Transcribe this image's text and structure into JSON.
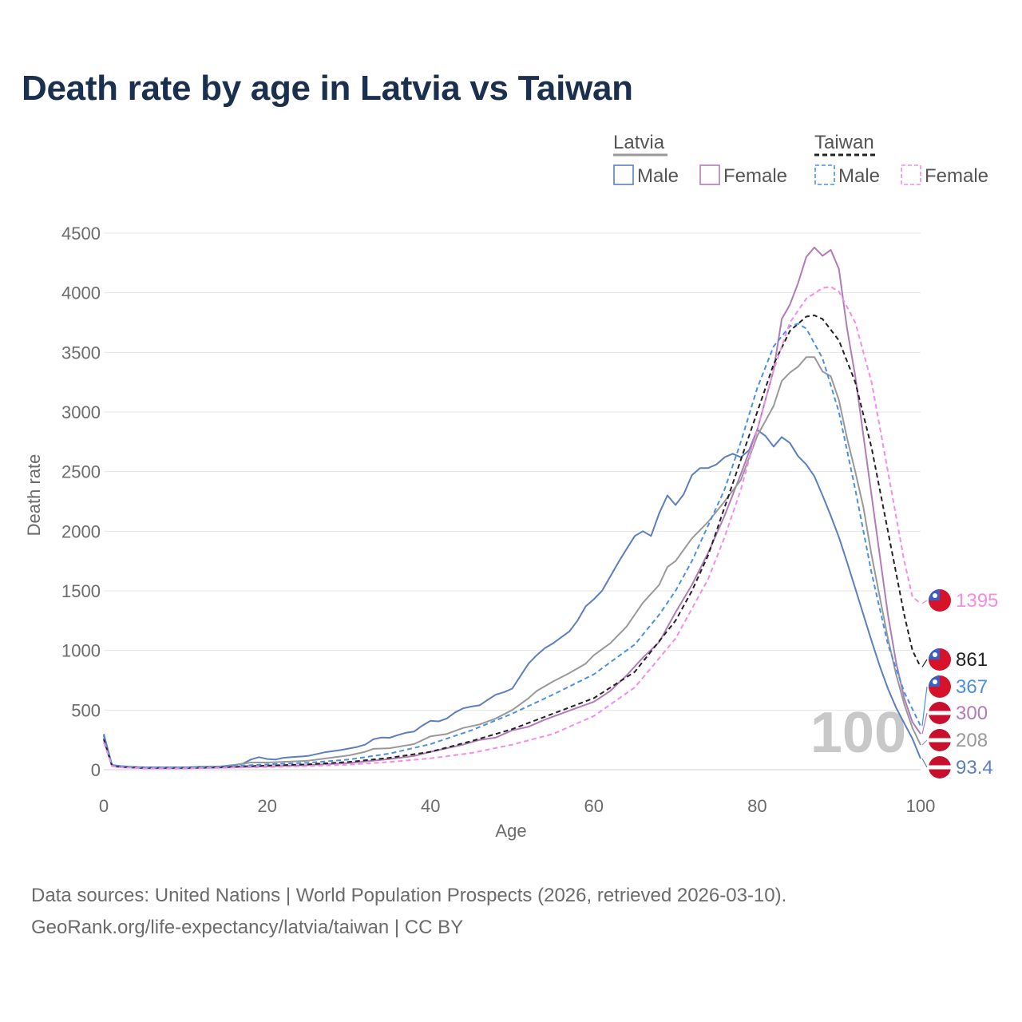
{
  "title": "Death rate by age in Latvia vs Taiwan",
  "footer": {
    "sources": "Data sources: United Nations | World Population Prospects (2026, retrieved 2026-03-10).",
    "credit": "GeoRank.org/life-expectancy/latvia/taiwan | CC BY"
  },
  "legend": {
    "groups": [
      {
        "name": "Latvia",
        "color": "#999999",
        "dash": false
      },
      {
        "name": "Taiwan",
        "color": "#222222",
        "dash": true
      }
    ],
    "items": [
      {
        "label": "Male",
        "color": "#5b7fbf",
        "dash": false
      },
      {
        "label": "Female",
        "color": "#b07cb8",
        "dash": false
      },
      {
        "label": "Male",
        "color": "#4a90e2",
        "dash": true
      },
      {
        "label": "Female",
        "color": "#f48ce8",
        "dash": true
      }
    ]
  },
  "chart_data": {
    "type": "line",
    "title": "Death rate by age in Latvia vs Taiwan",
    "xlabel": "Age",
    "ylabel": "Death rate",
    "xlim": [
      0,
      100
    ],
    "ylim": [
      0,
      4500
    ],
    "xticks": [
      0,
      20,
      40,
      60,
      80,
      100
    ],
    "yticks": [
      0,
      500,
      1000,
      1500,
      2000,
      2500,
      3000,
      3500,
      4000,
      4500
    ],
    "grid": true,
    "watermark": "100",
    "series": [
      {
        "name": "Latvia Male",
        "color": "#5b7fbf",
        "dash": false,
        "end_label": "93.4",
        "flag": "latvia",
        "points": [
          [
            0,
            300
          ],
          [
            1,
            40
          ],
          [
            2,
            30
          ],
          [
            3,
            25
          ],
          [
            5,
            20
          ],
          [
            10,
            20
          ],
          [
            12,
            25
          ],
          [
            14,
            25
          ],
          [
            16,
            40
          ],
          [
            17,
            50
          ],
          [
            18,
            85
          ],
          [
            19,
            105
          ],
          [
            20,
            90
          ],
          [
            21,
            85
          ],
          [
            22,
            100
          ],
          [
            23,
            105
          ],
          [
            25,
            115
          ],
          [
            27,
            145
          ],
          [
            29,
            165
          ],
          [
            31,
            190
          ],
          [
            32,
            210
          ],
          [
            33,
            255
          ],
          [
            34,
            270
          ],
          [
            35,
            268
          ],
          [
            36,
            290
          ],
          [
            37,
            310
          ],
          [
            38,
            320
          ],
          [
            39,
            370
          ],
          [
            40,
            410
          ],
          [
            41,
            405
          ],
          [
            42,
            430
          ],
          [
            43,
            480
          ],
          [
            44,
            515
          ],
          [
            45,
            530
          ],
          [
            46,
            540
          ],
          [
            47,
            585
          ],
          [
            48,
            630
          ],
          [
            49,
            650
          ],
          [
            50,
            680
          ],
          [
            51,
            785
          ],
          [
            52,
            890
          ],
          [
            53,
            960
          ],
          [
            54,
            1020
          ],
          [
            55,
            1060
          ],
          [
            56,
            1110
          ],
          [
            57,
            1160
          ],
          [
            58,
            1250
          ],
          [
            59,
            1370
          ],
          [
            60,
            1430
          ],
          [
            61,
            1500
          ],
          [
            62,
            1620
          ],
          [
            63,
            1740
          ],
          [
            64,
            1850
          ],
          [
            65,
            1960
          ],
          [
            66,
            2000
          ],
          [
            67,
            1960
          ],
          [
            68,
            2150
          ],
          [
            69,
            2300
          ],
          [
            70,
            2220
          ],
          [
            71,
            2310
          ],
          [
            72,
            2470
          ],
          [
            73,
            2530
          ],
          [
            74,
            2530
          ],
          [
            75,
            2560
          ],
          [
            76,
            2620
          ],
          [
            77,
            2650
          ],
          [
            78,
            2620
          ],
          [
            79,
            2680
          ],
          [
            80,
            2850
          ],
          [
            81,
            2800
          ],
          [
            82,
            2710
          ],
          [
            83,
            2790
          ],
          [
            84,
            2740
          ],
          [
            85,
            2630
          ],
          [
            86,
            2560
          ],
          [
            87,
            2460
          ],
          [
            88,
            2300
          ],
          [
            89,
            2130
          ],
          [
            90,
            1950
          ],
          [
            91,
            1740
          ],
          [
            92,
            1520
          ],
          [
            93,
            1300
          ],
          [
            94,
            1080
          ],
          [
            95,
            870
          ],
          [
            96,
            680
          ],
          [
            97,
            520
          ],
          [
            98,
            390
          ],
          [
            99,
            260
          ],
          [
            100,
            93.4
          ]
        ]
      },
      {
        "name": "Latvia Female",
        "color": "#b07cb8",
        "dash": false,
        "end_label": "300",
        "flag": "latvia",
        "points": [
          [
            0,
            250
          ],
          [
            1,
            30
          ],
          [
            2,
            20
          ],
          [
            5,
            12
          ],
          [
            10,
            12
          ],
          [
            15,
            18
          ],
          [
            20,
            28
          ],
          [
            25,
            38
          ],
          [
            30,
            55
          ],
          [
            35,
            90
          ],
          [
            38,
            115
          ],
          [
            40,
            150
          ],
          [
            42,
            180
          ],
          [
            44,
            210
          ],
          [
            46,
            250
          ],
          [
            48,
            270
          ],
          [
            50,
            330
          ],
          [
            52,
            360
          ],
          [
            54,
            420
          ],
          [
            56,
            470
          ],
          [
            58,
            520
          ],
          [
            60,
            570
          ],
          [
            62,
            660
          ],
          [
            64,
            790
          ],
          [
            66,
            940
          ],
          [
            68,
            1070
          ],
          [
            70,
            1320
          ],
          [
            72,
            1550
          ],
          [
            74,
            1820
          ],
          [
            76,
            2130
          ],
          [
            78,
            2480
          ],
          [
            80,
            2850
          ],
          [
            82,
            3350
          ],
          [
            83,
            3780
          ],
          [
            84,
            3900
          ],
          [
            85,
            4080
          ],
          [
            86,
            4300
          ],
          [
            87,
            4380
          ],
          [
            88,
            4310
          ],
          [
            89,
            4360
          ],
          [
            90,
            4200
          ],
          [
            91,
            3700
          ],
          [
            92,
            3300
          ],
          [
            93,
            2800
          ],
          [
            94,
            2300
          ],
          [
            95,
            1800
          ],
          [
            96,
            1300
          ],
          [
            97,
            900
          ],
          [
            98,
            600
          ],
          [
            99,
            400
          ],
          [
            100,
            300
          ]
        ]
      },
      {
        "name": "Latvia",
        "color": "#999999",
        "dash": false,
        "end_label": "208",
        "flag": "latvia",
        "points": [
          [
            0,
            280
          ],
          [
            1,
            35
          ],
          [
            2,
            25
          ],
          [
            5,
            16
          ],
          [
            10,
            16
          ],
          [
            15,
            28
          ],
          [
            18,
            60
          ],
          [
            20,
            60
          ],
          [
            25,
            75
          ],
          [
            30,
            120
          ],
          [
            32,
            150
          ],
          [
            33,
            175
          ],
          [
            35,
            180
          ],
          [
            38,
            215
          ],
          [
            40,
            280
          ],
          [
            42,
            300
          ],
          [
            44,
            350
          ],
          [
            46,
            380
          ],
          [
            48,
            430
          ],
          [
            50,
            500
          ],
          [
            52,
            600
          ],
          [
            53,
            660
          ],
          [
            55,
            740
          ],
          [
            57,
            810
          ],
          [
            59,
            890
          ],
          [
            60,
            960
          ],
          [
            62,
            1060
          ],
          [
            64,
            1200
          ],
          [
            66,
            1400
          ],
          [
            68,
            1550
          ],
          [
            69,
            1700
          ],
          [
            70,
            1750
          ],
          [
            72,
            1940
          ],
          [
            74,
            2080
          ],
          [
            76,
            2250
          ],
          [
            78,
            2430
          ],
          [
            80,
            2800
          ],
          [
            82,
            3050
          ],
          [
            83,
            3260
          ],
          [
            84,
            3330
          ],
          [
            85,
            3380
          ],
          [
            86,
            3460
          ],
          [
            87,
            3460
          ],
          [
            88,
            3340
          ],
          [
            89,
            3300
          ],
          [
            90,
            3100
          ],
          [
            91,
            2780
          ],
          [
            92,
            2500
          ],
          [
            93,
            2200
          ],
          [
            94,
            1800
          ],
          [
            95,
            1450
          ],
          [
            96,
            1100
          ],
          [
            97,
            800
          ],
          [
            98,
            550
          ],
          [
            99,
            350
          ],
          [
            100,
            208
          ]
        ]
      },
      {
        "name": "Taiwan",
        "color": "#222222",
        "dash": true,
        "end_label": "861",
        "flag": "taiwan",
        "points": [
          [
            0,
            260
          ],
          [
            1,
            35
          ],
          [
            2,
            25
          ],
          [
            5,
            15
          ],
          [
            10,
            15
          ],
          [
            15,
            22
          ],
          [
            20,
            35
          ],
          [
            25,
            45
          ],
          [
            30,
            65
          ],
          [
            35,
            100
          ],
          [
            40,
            150
          ],
          [
            45,
            240
          ],
          [
            50,
            340
          ],
          [
            55,
            470
          ],
          [
            60,
            600
          ],
          [
            65,
            820
          ],
          [
            70,
            1250
          ],
          [
            72,
            1500
          ],
          [
            74,
            1800
          ],
          [
            76,
            2200
          ],
          [
            78,
            2600
          ],
          [
            80,
            3000
          ],
          [
            82,
            3400
          ],
          [
            84,
            3680
          ],
          [
            86,
            3800
          ],
          [
            87,
            3810
          ],
          [
            88,
            3780
          ],
          [
            90,
            3600
          ],
          [
            92,
            3250
          ],
          [
            94,
            2700
          ],
          [
            96,
            2000
          ],
          [
            98,
            1300
          ],
          [
            99,
            1000
          ],
          [
            100,
            861
          ]
        ]
      },
      {
        "name": "Taiwan Male",
        "color": "#4a90e2",
        "dash": true,
        "end_label": "367",
        "flag": "taiwan",
        "points": [
          [
            0,
            290
          ],
          [
            1,
            40
          ],
          [
            2,
            30
          ],
          [
            5,
            18
          ],
          [
            10,
            18
          ],
          [
            15,
            28
          ],
          [
            20,
            45
          ],
          [
            25,
            58
          ],
          [
            30,
            85
          ],
          [
            35,
            135
          ],
          [
            40,
            215
          ],
          [
            45,
            330
          ],
          [
            50,
            470
          ],
          [
            55,
            630
          ],
          [
            60,
            800
          ],
          [
            65,
            1050
          ],
          [
            68,
            1300
          ],
          [
            70,
            1500
          ],
          [
            72,
            1750
          ],
          [
            74,
            2050
          ],
          [
            76,
            2350
          ],
          [
            78,
            2750
          ],
          [
            80,
            3200
          ],
          [
            82,
            3550
          ],
          [
            84,
            3720
          ],
          [
            85,
            3740
          ],
          [
            86,
            3700
          ],
          [
            88,
            3450
          ],
          [
            90,
            3000
          ],
          [
            92,
            2350
          ],
          [
            94,
            1650
          ],
          [
            96,
            1050
          ],
          [
            98,
            650
          ],
          [
            100,
            367
          ]
        ]
      },
      {
        "name": "Taiwan Female",
        "color": "#f48ce8",
        "dash": true,
        "end_label": "1395",
        "flag": "taiwan",
        "points": [
          [
            0,
            230
          ],
          [
            1,
            30
          ],
          [
            2,
            20
          ],
          [
            5,
            12
          ],
          [
            10,
            12
          ],
          [
            15,
            16
          ],
          [
            20,
            22
          ],
          [
            25,
            30
          ],
          [
            30,
            42
          ],
          [
            35,
            65
          ],
          [
            40,
            95
          ],
          [
            45,
            140
          ],
          [
            50,
            210
          ],
          [
            55,
            300
          ],
          [
            60,
            450
          ],
          [
            65,
            690
          ],
          [
            70,
            1100
          ],
          [
            74,
            1600
          ],
          [
            76,
            1950
          ],
          [
            78,
            2350
          ],
          [
            80,
            2850
          ],
          [
            82,
            3350
          ],
          [
            84,
            3750
          ],
          [
            86,
            3950
          ],
          [
            88,
            4040
          ],
          [
            89,
            4050
          ],
          [
            90,
            4010
          ],
          [
            92,
            3750
          ],
          [
            94,
            3250
          ],
          [
            96,
            2500
          ],
          [
            98,
            1750
          ],
          [
            99,
            1450
          ],
          [
            100,
            1395
          ]
        ]
      }
    ]
  }
}
